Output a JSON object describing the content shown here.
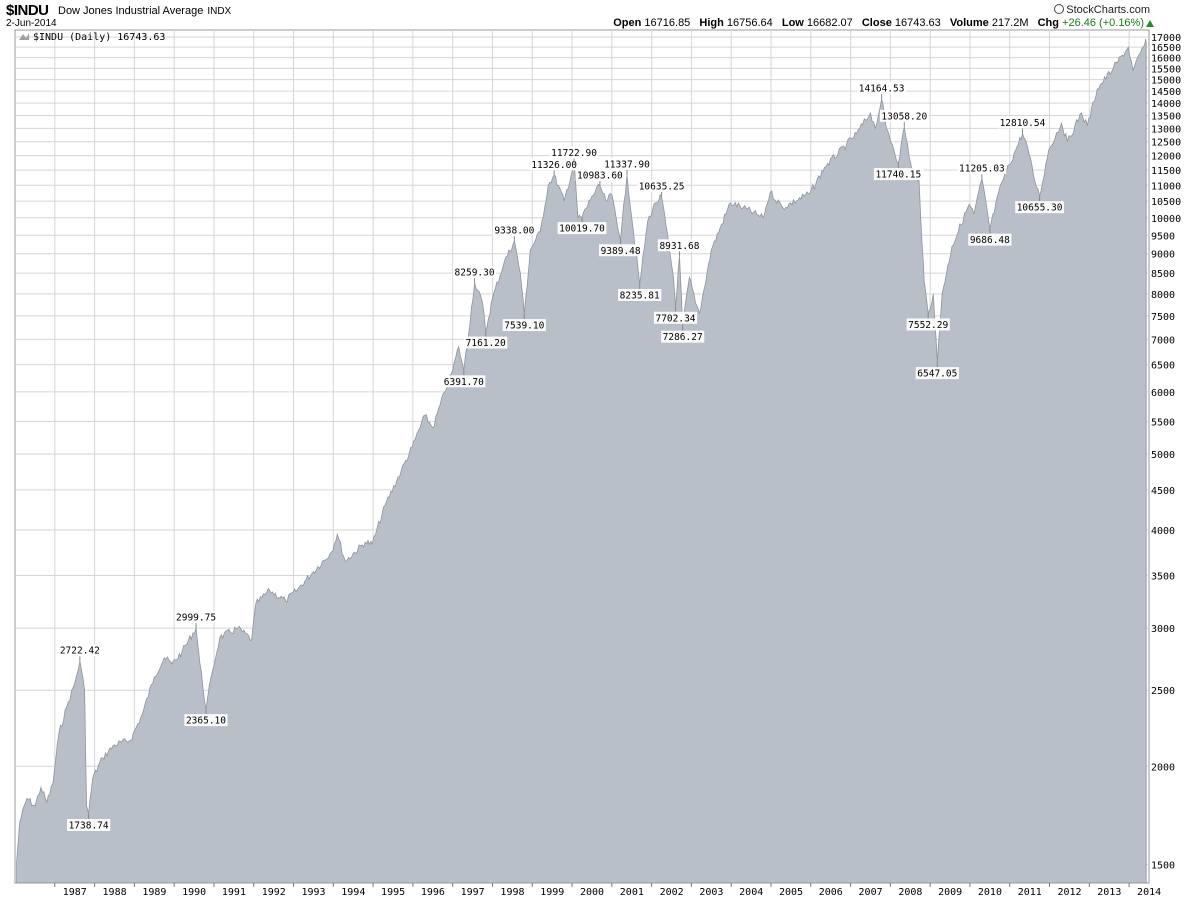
{
  "header": {
    "symbol": "$INDU",
    "name": "Dow Jones Industrial Average",
    "exchange": "INDX",
    "date": "2-Jun-2014",
    "brand": "StockCharts.com",
    "quote": {
      "open_label": "Open",
      "open": "16716.85",
      "high_label": "High",
      "high": "16756.64",
      "low_label": "Low",
      "low": "16682.07",
      "close_label": "Close",
      "close": "16743.63",
      "volume_label": "Volume",
      "volume": "217.2M",
      "chg_label": "Chg",
      "chg": "+26.46 (+0.16%)"
    }
  },
  "legend": {
    "text": "$INDU (Daily) 16743.63"
  },
  "colors": {
    "area": "#b8bfc8",
    "line": "#8e949c",
    "grid": "#d6d6d6",
    "up": "#2a8a2a"
  },
  "chart_data": {
    "type": "area",
    "title": "$INDU Dow Jones Industrial Average INDX",
    "scale": "log",
    "ylim": [
      1420,
      17350
    ],
    "xlim": [
      1986.0,
      2014.5
    ],
    "grid": true,
    "legend_position": "top-left",
    "y_ticks": [
      1500,
      2000,
      2500,
      3000,
      3500,
      4000,
      4500,
      5000,
      5500,
      6000,
      6500,
      7000,
      7500,
      8000,
      8500,
      9000,
      9500,
      10000,
      10500,
      11000,
      11500,
      12000,
      12500,
      13000,
      13500,
      14000,
      14500,
      15000,
      15500,
      16000,
      16500,
      17000
    ],
    "x_ticks": [
      {
        "label": "1987",
        "x": 1987.0
      },
      {
        "label": "1988",
        "x": 1988.0
      },
      {
        "label": "1989",
        "x": 1989.0
      },
      {
        "label": "1990",
        "x": 1990.0
      },
      {
        "label": "1991",
        "x": 1991.0
      },
      {
        "label": "1992",
        "x": 1992.0
      },
      {
        "label": "1993",
        "x": 1993.0
      },
      {
        "label": "1994",
        "x": 1994.0
      },
      {
        "label": "1995",
        "x": 1995.0
      },
      {
        "label": "1996",
        "x": 1996.0
      },
      {
        "label": "1997",
        "x": 1997.0
      },
      {
        "label": "1998",
        "x": 1998.0
      },
      {
        "label": "1999",
        "x": 1999.0
      },
      {
        "label": "2000",
        "x": 2000.0
      },
      {
        "label": "2001",
        "x": 2001.0
      },
      {
        "label": "2002",
        "x": 2002.0
      },
      {
        "label": "2003",
        "x": 2003.0
      },
      {
        "label": "2004",
        "x": 2004.0
      },
      {
        "label": "2005",
        "x": 2005.0
      },
      {
        "label": "2006",
        "x": 2006.0
      },
      {
        "label": "2007",
        "x": 2007.0
      },
      {
        "label": "2008",
        "x": 2008.0
      },
      {
        "label": "2009",
        "x": 2009.0
      },
      {
        "label": "2010",
        "x": 2010.0
      },
      {
        "label": "2011",
        "x": 2011.0
      },
      {
        "label": "2012",
        "x": 2012.0
      },
      {
        "label": "2013",
        "x": 2013.0
      },
      {
        "label": "2014",
        "x": 2014.0
      }
    ],
    "series": [
      {
        "values": [
          [
            1986.04,
            1510
          ],
          [
            1986.12,
            1700
          ],
          [
            1986.3,
            1820
          ],
          [
            1986.5,
            1780
          ],
          [
            1986.65,
            1880
          ],
          [
            1986.8,
            1800
          ],
          [
            1986.95,
            1900
          ],
          [
            1987.1,
            2200
          ],
          [
            1987.3,
            2380
          ],
          [
            1987.5,
            2550
          ],
          [
            1987.63,
            2722
          ],
          [
            1987.75,
            2500
          ],
          [
            1987.8,
            1780
          ],
          [
            1987.85,
            1739
          ],
          [
            1987.95,
            1930
          ],
          [
            1988.2,
            2050
          ],
          [
            1988.5,
            2130
          ],
          [
            1988.9,
            2160
          ],
          [
            1989.2,
            2330
          ],
          [
            1989.5,
            2600
          ],
          [
            1989.75,
            2750
          ],
          [
            1989.95,
            2700
          ],
          [
            1990.2,
            2800
          ],
          [
            1990.55,
            3000
          ],
          [
            1990.65,
            2700
          ],
          [
            1990.8,
            2365
          ],
          [
            1990.95,
            2630
          ],
          [
            1991.15,
            2920
          ],
          [
            1991.6,
            3000
          ],
          [
            1991.95,
            2900
          ],
          [
            1992.05,
            3220
          ],
          [
            1992.4,
            3350
          ],
          [
            1992.8,
            3250
          ],
          [
            1993.1,
            3360
          ],
          [
            1993.5,
            3540
          ],
          [
            1993.95,
            3750
          ],
          [
            1994.1,
            3950
          ],
          [
            1994.3,
            3650
          ],
          [
            1994.8,
            3860
          ],
          [
            1994.98,
            3840
          ],
          [
            1995.3,
            4300
          ],
          [
            1995.7,
            4750
          ],
          [
            1995.98,
            5100
          ],
          [
            1996.3,
            5600
          ],
          [
            1996.5,
            5400
          ],
          [
            1996.8,
            6000
          ],
          [
            1997.0,
            6400
          ],
          [
            1997.15,
            6850
          ],
          [
            1997.28,
            6392
          ],
          [
            1997.55,
            8259
          ],
          [
            1997.75,
            7800
          ],
          [
            1997.83,
            7161
          ],
          [
            1998.0,
            7900
          ],
          [
            1998.3,
            8800
          ],
          [
            1998.55,
            9338
          ],
          [
            1998.7,
            8500
          ],
          [
            1998.8,
            7539
          ],
          [
            1998.95,
            9100
          ],
          [
            1999.2,
            9600
          ],
          [
            1999.4,
            11000
          ],
          [
            1999.55,
            11326
          ],
          [
            1999.8,
            10500
          ],
          [
            2000.05,
            11723
          ],
          [
            2000.15,
            10000
          ],
          [
            2000.25,
            10020
          ],
          [
            2000.5,
            10650
          ],
          [
            2000.7,
            10984
          ],
          [
            2000.85,
            10500
          ],
          [
            2001.0,
            10700
          ],
          [
            2001.22,
            9389
          ],
          [
            2001.38,
            11338
          ],
          [
            2001.7,
            8236
          ],
          [
            2001.9,
            9900
          ],
          [
            2002.1,
            10450
          ],
          [
            2002.25,
            10635
          ],
          [
            2002.55,
            8400
          ],
          [
            2002.6,
            7702
          ],
          [
            2002.7,
            8931
          ],
          [
            2002.78,
            7286
          ],
          [
            2002.95,
            8400
          ],
          [
            2003.1,
            7800
          ],
          [
            2003.2,
            7550
          ],
          [
            2003.5,
            9100
          ],
          [
            2003.98,
            10450
          ],
          [
            2004.3,
            10300
          ],
          [
            2004.8,
            10000
          ],
          [
            2004.98,
            10780
          ],
          [
            2005.3,
            10300
          ],
          [
            2005.98,
            10750
          ],
          [
            2006.35,
            11600
          ],
          [
            2006.9,
            12400
          ],
          [
            2007.15,
            12800
          ],
          [
            2007.5,
            13600
          ],
          [
            2007.62,
            13000
          ],
          [
            2007.78,
            14164
          ],
          [
            2007.9,
            13000
          ],
          [
            2008.05,
            12400
          ],
          [
            2008.2,
            11740
          ],
          [
            2008.35,
            13058
          ],
          [
            2008.55,
            11400
          ],
          [
            2008.72,
            11200
          ],
          [
            2008.8,
            9200
          ],
          [
            2008.85,
            8300
          ],
          [
            2008.95,
            7552
          ],
          [
            2009.08,
            8000
          ],
          [
            2009.18,
            6547
          ],
          [
            2009.3,
            8000
          ],
          [
            2009.55,
            9200
          ],
          [
            2009.98,
            10400
          ],
          [
            2010.1,
            10100
          ],
          [
            2010.3,
            11205
          ],
          [
            2010.5,
            9686
          ],
          [
            2010.8,
            11100
          ],
          [
            2011.15,
            12200
          ],
          [
            2011.32,
            12811
          ],
          [
            2011.45,
            12300
          ],
          [
            2011.6,
            11300
          ],
          [
            2011.75,
            10655
          ],
          [
            2011.98,
            12200
          ],
          [
            2012.3,
            13200
          ],
          [
            2012.45,
            12500
          ],
          [
            2012.8,
            13600
          ],
          [
            2012.95,
            13100
          ],
          [
            2013.2,
            14600
          ],
          [
            2013.6,
            15500
          ],
          [
            2013.98,
            16500
          ],
          [
            2014.1,
            15400
          ],
          [
            2014.4,
            16700
          ],
          [
            2014.43,
            16743
          ]
        ]
      }
    ],
    "annotations": [
      {
        "x": 1987.63,
        "y": 2722.42,
        "label": "2722.42",
        "pos": "above"
      },
      {
        "x": 1987.85,
        "y": 1738.74,
        "label": "1738.74",
        "pos": "below"
      },
      {
        "x": 1990.55,
        "y": 2999.75,
        "label": "2999.75",
        "pos": "above"
      },
      {
        "x": 1990.8,
        "y": 2365.1,
        "label": "2365.10",
        "pos": "below"
      },
      {
        "x": 1997.28,
        "y": 6391.7,
        "label": "6391.70",
        "pos": "below"
      },
      {
        "x": 1997.55,
        "y": 8259.3,
        "label": "8259.30",
        "pos": "above"
      },
      {
        "x": 1997.83,
        "y": 7161.2,
        "label": "7161.20",
        "pos": "below"
      },
      {
        "x": 1998.55,
        "y": 9338.0,
        "label": "9338.00",
        "pos": "above"
      },
      {
        "x": 1998.8,
        "y": 7539.1,
        "label": "7539.10",
        "pos": "below"
      },
      {
        "x": 1999.55,
        "y": 11326.0,
        "label": "11326.00",
        "pos": "above"
      },
      {
        "x": 2000.05,
        "y": 11722.9,
        "label": "11722.90",
        "pos": "above"
      },
      {
        "x": 2000.25,
        "y": 10019.7,
        "label": "10019.70",
        "pos": "below"
      },
      {
        "x": 2000.7,
        "y": 10983.6,
        "label": "10983.60",
        "pos": "above"
      },
      {
        "x": 2001.38,
        "y": 11337.9,
        "label": "11337.90",
        "pos": "above"
      },
      {
        "x": 2001.22,
        "y": 9389.48,
        "label": "9389.48",
        "pos": "below"
      },
      {
        "x": 2001.7,
        "y": 8235.81,
        "label": "8235.81",
        "pos": "below"
      },
      {
        "x": 2002.25,
        "y": 10635.25,
        "label": "10635.25",
        "pos": "above"
      },
      {
        "x": 2002.7,
        "y": 8931.68,
        "label": "8931.68",
        "pos": "above"
      },
      {
        "x": 2002.6,
        "y": 7702.34,
        "label": "7702.34",
        "pos": "below"
      },
      {
        "x": 2002.78,
        "y": 7286.27,
        "label": "7286.27",
        "pos": "below"
      },
      {
        "x": 2007.78,
        "y": 14164.53,
        "label": "14164.53",
        "pos": "above"
      },
      {
        "x": 2008.35,
        "y": 13058.2,
        "label": "13058.20",
        "pos": "above"
      },
      {
        "x": 2008.2,
        "y": 11740.15,
        "label": "11740.15",
        "pos": "below"
      },
      {
        "x": 2008.95,
        "y": 7552.29,
        "label": "7552.29",
        "pos": "below"
      },
      {
        "x": 2009.18,
        "y": 6547.05,
        "label": "6547.05",
        "pos": "below"
      },
      {
        "x": 2010.3,
        "y": 11205.03,
        "label": "11205.03",
        "pos": "above"
      },
      {
        "x": 2010.5,
        "y": 9686.48,
        "label": "9686.48",
        "pos": "below"
      },
      {
        "x": 2011.32,
        "y": 12810.54,
        "label": "12810.54",
        "pos": "above"
      },
      {
        "x": 2011.75,
        "y": 10655.3,
        "label": "10655.30",
        "pos": "below"
      }
    ]
  }
}
